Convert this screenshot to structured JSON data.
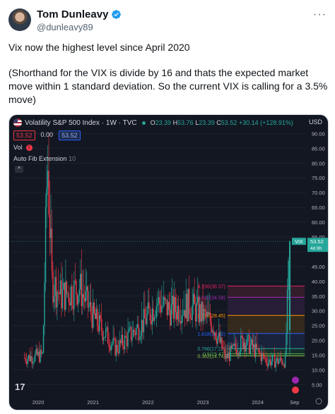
{
  "post": {
    "author_name": "Tom Dunleavy",
    "handle": "@dunleavy89",
    "text_line1": "Vix now the highest level since April 2020",
    "text_line2": "(Shorthand for the VIX is divide by 16 and thats the expected market move within 1 standard deviation. So the current VIX is calling for a 3.5% move)"
  },
  "chart_header": {
    "title": "Volatility S&P 500 Index · 1W · TVC",
    "ohlc": {
      "o": "23.39",
      "h": "53.76",
      "l": "23.39",
      "c": "53.52",
      "chg": "+30.14 (+128.91%)"
    },
    "currency": "USD",
    "price_pill": "53.52",
    "spread": "0.00",
    "price_pill2": "53.52",
    "vol_label": "Vol",
    "indicator_label": "Auto Fib Extension",
    "indicator_value": "10"
  },
  "colors": {
    "up": "#26a69a",
    "down": "#f23645",
    "bg": "#131722"
  },
  "chart_data": {
    "type": "candlestick",
    "title": "Volatility S&P 500 Index · 1W · TVC",
    "x_ticks": [
      "2020",
      "2021",
      "2022",
      "2023",
      "2024",
      "Sep"
    ],
    "y_ticks": [
      "90.00",
      "85.00",
      "80.00",
      "75.00",
      "70.00",
      "65.00",
      "60.00",
      "55.00",
      "45.00",
      "40.00",
      "35.00",
      "30.00",
      "25.00",
      "20.00",
      "15.00",
      "10.00",
      "5.00"
    ],
    "ylim": [
      2,
      92
    ],
    "last_price_label": "VIX",
    "last_price": "53.52",
    "countdown": "4d 9h",
    "fib_levels": [
      {
        "label": "4.236(38.37)",
        "value": 38.37,
        "color": "#e91e63"
      },
      {
        "label": "3.618(34.58)",
        "value": 34.58,
        "color": "#9c27b0"
      },
      {
        "label": "2.618(28.45)",
        "value": 28.45,
        "color": "#ff9800"
      },
      {
        "label": "1.618(22.32)",
        "value": 22.32,
        "color": "#2962ff"
      },
      {
        "label": "0.786(17.22)",
        "value": 17.22,
        "color": "#26a69a"
      },
      {
        "label": "0.5(15.47)",
        "value": 15.47,
        "color": "#4caf50"
      },
      {
        "label": "0.382(14.74)",
        "value": 14.74,
        "color": "#8bc34a"
      }
    ],
    "series_keypoints": [
      {
        "x": "2019-10",
        "y": 14
      },
      {
        "x": "2020-02",
        "y": 15
      },
      {
        "x": "2020-03",
        "y": 82
      },
      {
        "x": "2020-04",
        "y": 40
      },
      {
        "x": "2020-06",
        "y": 35
      },
      {
        "x": "2020-10",
        "y": 38
      },
      {
        "x": "2021-01",
        "y": 28
      },
      {
        "x": "2021-06",
        "y": 17
      },
      {
        "x": "2021-12",
        "y": 26
      },
      {
        "x": "2022-03",
        "y": 33
      },
      {
        "x": "2022-06",
        "y": 30
      },
      {
        "x": "2022-10",
        "y": 32
      },
      {
        "x": "2023-03",
        "y": 26
      },
      {
        "x": "2023-06",
        "y": 14
      },
      {
        "x": "2023-10",
        "y": 20
      },
      {
        "x": "2024-03",
        "y": 13
      },
      {
        "x": "2024-07",
        "y": 13
      },
      {
        "x": "2024-08",
        "y": 53.52
      }
    ]
  }
}
